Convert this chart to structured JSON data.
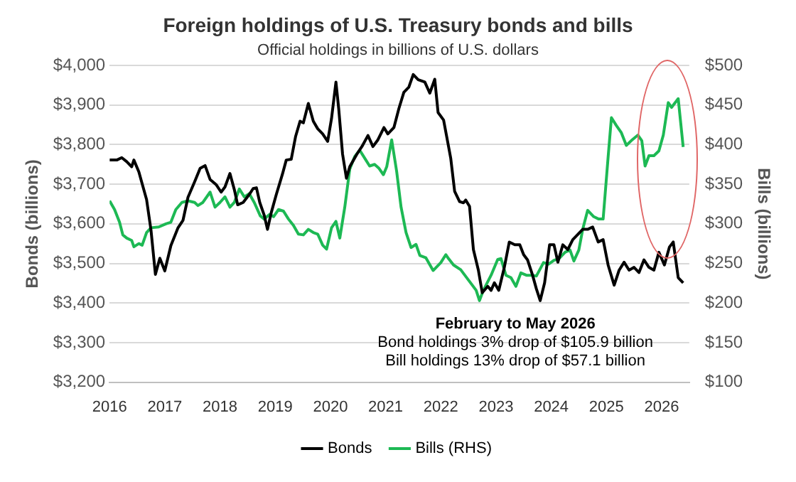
{
  "chart_data": {
    "type": "line",
    "title": "Foreign holdings of U.S. Treasury bonds and bills",
    "subtitle": "Official holdings in billions of U.S. dollars",
    "ylabel": "Bonds (billions)",
    "y2label": "Bills (billions)",
    "xlim": [
      2016,
      2026.5
    ],
    "xticks": [
      2016,
      2017,
      2018,
      2019,
      2020,
      2021,
      2022,
      2023,
      2024,
      2025,
      2026
    ],
    "ylim": [
      3200,
      4000
    ],
    "yticks": [
      {
        "value": 3200,
        "label": "$3,200"
      },
      {
        "value": 3300,
        "label": "$3,300"
      },
      {
        "value": 3400,
        "label": "$3,400"
      },
      {
        "value": 3500,
        "label": "$3,500"
      },
      {
        "value": 3600,
        "label": "$3,600"
      },
      {
        "value": 3700,
        "label": "$3,700"
      },
      {
        "value": 3800,
        "label": "$3,800"
      },
      {
        "value": 3900,
        "label": "$3,900"
      },
      {
        "value": 4000,
        "label": "$4,000"
      }
    ],
    "y2lim": [
      100,
      500
    ],
    "y2ticks": [
      {
        "value": 100,
        "label": "$100"
      },
      {
        "value": 150,
        "label": "$150"
      },
      {
        "value": 200,
        "label": "$200"
      },
      {
        "value": 250,
        "label": "$250"
      },
      {
        "value": 300,
        "label": "$300"
      },
      {
        "value": 350,
        "label": "$350"
      },
      {
        "value": 400,
        "label": "$400"
      },
      {
        "value": 450,
        "label": "$450"
      },
      {
        "value": 500,
        "label": "$500"
      }
    ],
    "grid": "y",
    "legend": "bottom",
    "marker": "none",
    "line_style": "solid",
    "annotations": [
      "February to May 2026",
      "Bond holdings 3% drop of $105.9 billion",
      "Bill holdings 13% drop of $57.1 billion"
    ],
    "series": [
      {
        "name": "Bonds",
        "color": "#000000",
        "x": [
          2016.0,
          2016.13,
          2016.22,
          2016.31,
          2016.4,
          2016.44,
          2016.53,
          2016.67,
          2016.75,
          2016.83,
          2016.91,
          2017.0,
          2017.11,
          2017.24,
          2017.33,
          2017.42,
          2017.54,
          2017.64,
          2017.73,
          2017.82,
          2017.93,
          2018.02,
          2018.09,
          2018.18,
          2018.26,
          2018.32,
          2018.42,
          2018.53,
          2018.6,
          2018.66,
          2018.72,
          2018.8,
          2018.86,
          2018.93,
          2019.02,
          2019.13,
          2019.2,
          2019.29,
          2019.37,
          2019.45,
          2019.51,
          2019.6,
          2019.69,
          2019.77,
          2019.86,
          2019.95,
          2020.02,
          2020.1,
          2020.15,
          2020.22,
          2020.29,
          2020.35,
          2020.48,
          2020.57,
          2020.68,
          2020.77,
          2020.86,
          2020.97,
          2021.04,
          2021.15,
          2021.24,
          2021.33,
          2021.42,
          2021.5,
          2021.59,
          2021.71,
          2021.8,
          2021.89,
          2021.95,
          2022.05,
          2022.12,
          2022.18,
          2022.25,
          2022.34,
          2022.41,
          2022.45,
          2022.52,
          2022.59,
          2022.68,
          2022.75,
          2022.85,
          2022.91,
          2022.97,
          2023.05,
          2023.15,
          2023.24,
          2023.34,
          2023.43,
          2023.5,
          2023.57,
          2023.66,
          2023.73,
          2023.8,
          2023.88,
          2023.97,
          2024.05,
          2024.12,
          2024.21,
          2024.3,
          2024.39,
          2024.48,
          2024.57,
          2024.66,
          2024.75,
          2024.85,
          2024.94,
          2025.03,
          2025.14,
          2025.23,
          2025.32,
          2025.41,
          2025.5,
          2025.59,
          2025.68,
          2025.77,
          2025.86,
          2025.95,
          2026.05,
          2026.14,
          2026.21,
          2026.3,
          2026.39
        ],
        "values": [
          3761,
          3761,
          3767,
          3757,
          3744,
          3761,
          3731,
          3661,
          3584,
          3472,
          3513,
          3481,
          3545,
          3590,
          3609,
          3667,
          3706,
          3740,
          3747,
          3712,
          3699,
          3680,
          3693,
          3727,
          3686,
          3648,
          3654,
          3674,
          3689,
          3691,
          3654,
          3622,
          3586,
          3629,
          3674,
          3725,
          3761,
          3763,
          3821,
          3859,
          3855,
          3904,
          3859,
          3840,
          3827,
          3808,
          3866,
          3958,
          3891,
          3776,
          3715,
          3744,
          3776,
          3795,
          3823,
          3795,
          3812,
          3843,
          3827,
          3843,
          3891,
          3932,
          3945,
          3977,
          3964,
          3958,
          3930,
          3965,
          3881,
          3862,
          3810,
          3765,
          3682,
          3656,
          3653,
          3660,
          3644,
          3535,
          3483,
          3426,
          3442,
          3432,
          3451,
          3432,
          3490,
          3554,
          3547,
          3547,
          3522,
          3509,
          3471,
          3436,
          3406,
          3451,
          3547,
          3547,
          3503,
          3547,
          3535,
          3560,
          3573,
          3586,
          3586,
          3592,
          3554,
          3560,
          3496,
          3445,
          3483,
          3503,
          3483,
          3490,
          3477,
          3509,
          3490,
          3483,
          3528,
          3496,
          3541,
          3554,
          3464,
          3451
        ]
      },
      {
        "name": "Bills (RHS)",
        "color": "#1db954",
        "axis": "y2",
        "x": [
          2016.0,
          2016.09,
          2016.18,
          2016.24,
          2016.31,
          2016.4,
          2016.44,
          2016.53,
          2016.59,
          2016.67,
          2016.75,
          2016.89,
          2017.02,
          2017.11,
          2017.2,
          2017.31,
          2017.42,
          2017.54,
          2017.6,
          2017.69,
          2017.82,
          2017.91,
          2018.0,
          2018.09,
          2018.18,
          2018.26,
          2018.35,
          2018.44,
          2018.53,
          2018.62,
          2018.73,
          2018.8,
          2018.9,
          2018.97,
          2019.06,
          2019.15,
          2019.24,
          2019.33,
          2019.42,
          2019.51,
          2019.6,
          2019.69,
          2019.77,
          2019.86,
          2019.93,
          2020.02,
          2020.1,
          2020.17,
          2020.26,
          2020.35,
          2020.44,
          2020.53,
          2020.62,
          2020.71,
          2020.8,
          2020.88,
          2020.96,
          2021.02,
          2021.11,
          2021.2,
          2021.28,
          2021.37,
          2021.46,
          2021.55,
          2021.62,
          2021.73,
          2021.86,
          2022.0,
          2022.09,
          2022.14,
          2022.23,
          2022.36,
          2022.5,
          2022.64,
          2022.7,
          2022.77,
          2022.91,
          2023.03,
          2023.09,
          2023.18,
          2023.27,
          2023.36,
          2023.45,
          2023.55,
          2023.64,
          2023.73,
          2023.86,
          2023.95,
          2024.05,
          2024.14,
          2024.25,
          2024.34,
          2024.41,
          2024.5,
          2024.57,
          2024.66,
          2024.77,
          2024.86,
          2024.94,
          2025.03,
          2025.09,
          2025.18,
          2025.27,
          2025.36,
          2025.45,
          2025.57,
          2025.64,
          2025.7,
          2025.77,
          2025.86,
          2025.95,
          2026.03,
          2026.12,
          2026.18,
          2026.3,
          2026.39
        ],
        "values": [
          329,
          318,
          302,
          286,
          282,
          279,
          271,
          275,
          273,
          289,
          295,
          296,
          300,
          302,
          318,
          327,
          329,
          327,
          323,
          327,
          340,
          321,
          327,
          334,
          321,
          327,
          344,
          334,
          338,
          327,
          310,
          306,
          312,
          309,
          318,
          316,
          306,
          298,
          287,
          286,
          293,
          289,
          287,
          273,
          268,
          295,
          303,
          282,
          321,
          369,
          385,
          393,
          383,
          373,
          375,
          370,
          362,
          372,
          406,
          366,
          321,
          289,
          270,
          274,
          260,
          257,
          241,
          251,
          261,
          256,
          248,
          242,
          229,
          216,
          203,
          216,
          235,
          255,
          256,
          235,
          232,
          221,
          238,
          235,
          235,
          234,
          251,
          249,
          254,
          256,
          264,
          267,
          253,
          267,
          293,
          317,
          309,
          306,
          306,
          384,
          434,
          424,
          415,
          399,
          405,
          412,
          405,
          373,
          386,
          386,
          392,
          412,
          453,
          447,
          458,
          397
        ]
      }
    ]
  }
}
